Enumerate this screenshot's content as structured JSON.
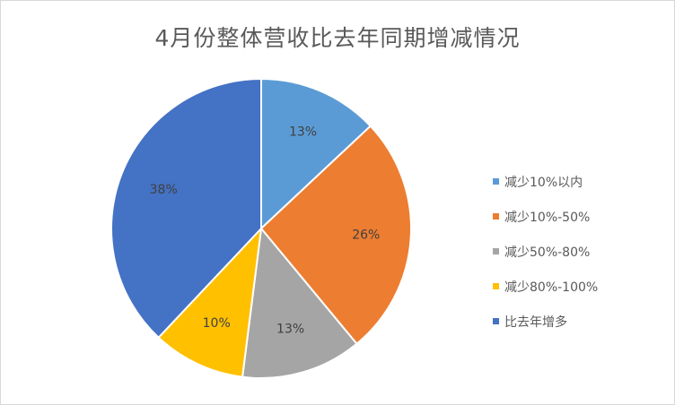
{
  "chart_data": {
    "type": "pie",
    "title": "4月份整体营收比去年同期增减情况",
    "categories": [
      "减少10%以内",
      "减少10%-50%",
      "减少50%-80%",
      "减少80%-100%",
      "比去年增多"
    ],
    "values": [
      13,
      26,
      13,
      10,
      38
    ],
    "data_labels": [
      "13%",
      "26%",
      "13%",
      "10%",
      "38%"
    ],
    "colors": [
      "#5B9BD5",
      "#ED7D31",
      "#A5A5A5",
      "#FFC000",
      "#4472C4"
    ],
    "legend": "right"
  }
}
